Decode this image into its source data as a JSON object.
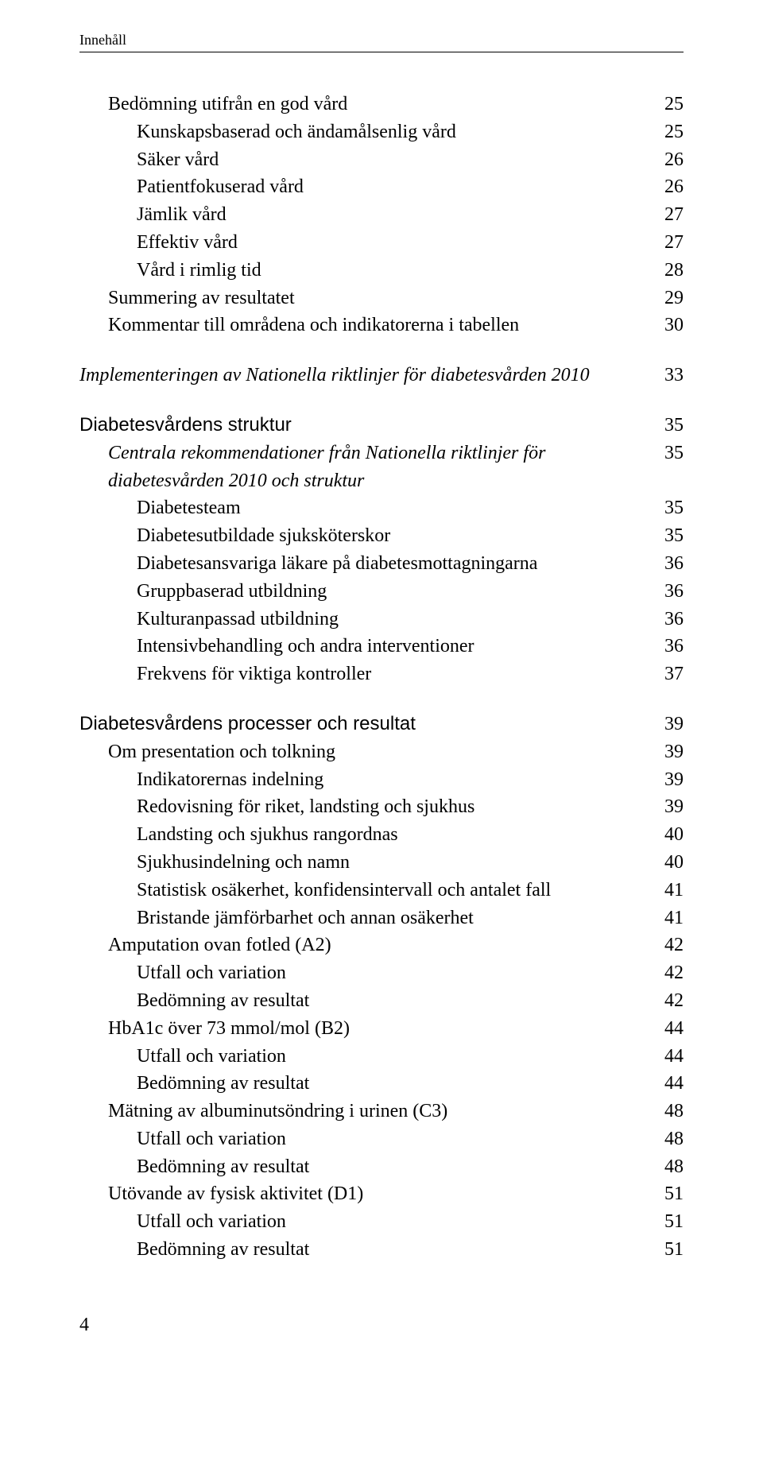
{
  "running_head": "Innehåll",
  "page_number": "4",
  "text_color": "#000000",
  "background_color": "#ffffff",
  "fontsize_body": 24,
  "fontsize_running_head": 18,
  "entries": [
    {
      "label": "Bedömning utifrån en god vård",
      "page": "25",
      "level": 1,
      "style": "normal",
      "gap": false
    },
    {
      "label": "Kunskapsbaserad och ändamålsenlig vård",
      "page": "25",
      "level": 2,
      "style": "normal",
      "gap": false
    },
    {
      "label": "Säker vård",
      "page": "26",
      "level": 2,
      "style": "normal",
      "gap": false
    },
    {
      "label": "Patientfokuserad vård",
      "page": "26",
      "level": 2,
      "style": "normal",
      "gap": false
    },
    {
      "label": "Jämlik vård",
      "page": "27",
      "level": 2,
      "style": "normal",
      "gap": false
    },
    {
      "label": "Effektiv vård",
      "page": "27",
      "level": 2,
      "style": "normal",
      "gap": false
    },
    {
      "label": "Vård i rimlig tid",
      "page": "28",
      "level": 2,
      "style": "normal",
      "gap": false
    },
    {
      "label": "Summering av resultatet",
      "page": "29",
      "level": 1,
      "style": "normal",
      "gap": false
    },
    {
      "label": "Kommentar till områdena och indikatorerna i tabellen",
      "page": "30",
      "level": 1,
      "style": "normal",
      "gap": false
    },
    {
      "label": "Implementeringen av Nationella riktlinjer för diabetesvården 2010",
      "page": "33",
      "level": 0,
      "style": "italic",
      "gap": true
    },
    {
      "label": "Diabetesvårdens struktur",
      "page": "35",
      "level": 0,
      "style": "sans",
      "gap": true
    },
    {
      "label": "Centrala rekommendationer från Nationella riktlinjer för diabetesvården 2010 och struktur",
      "page": "35",
      "level": 1,
      "style": "italic",
      "gap": false
    },
    {
      "label": "Diabetesteam",
      "page": "35",
      "level": 2,
      "style": "normal",
      "gap": false
    },
    {
      "label": "Diabetesutbildade sjuksköterskor",
      "page": "35",
      "level": 2,
      "style": "normal",
      "gap": false
    },
    {
      "label": "Diabetesansvariga läkare på diabetesmottagningarna",
      "page": "36",
      "level": 2,
      "style": "normal",
      "gap": false
    },
    {
      "label": "Gruppbaserad utbildning",
      "page": "36",
      "level": 2,
      "style": "normal",
      "gap": false
    },
    {
      "label": "Kulturanpassad utbildning",
      "page": "36",
      "level": 2,
      "style": "normal",
      "gap": false
    },
    {
      "label": "Intensivbehandling och andra interventioner",
      "page": "36",
      "level": 2,
      "style": "normal",
      "gap": false
    },
    {
      "label": "Frekvens för viktiga kontroller",
      "page": "37",
      "level": 2,
      "style": "normal",
      "gap": false
    },
    {
      "label": "Diabetesvårdens processer och resultat",
      "page": "39",
      "level": 0,
      "style": "sans",
      "gap": true
    },
    {
      "label": "Om presentation och tolkning",
      "page": "39",
      "level": 1,
      "style": "normal",
      "gap": false
    },
    {
      "label": "Indikatorernas indelning",
      "page": "39",
      "level": 2,
      "style": "normal",
      "gap": false
    },
    {
      "label": "Redovisning för riket, landsting och sjukhus",
      "page": "39",
      "level": 2,
      "style": "normal",
      "gap": false
    },
    {
      "label": "Landsting och sjukhus rangordnas",
      "page": "40",
      "level": 2,
      "style": "normal",
      "gap": false
    },
    {
      "label": "Sjukhusindelning och namn",
      "page": "40",
      "level": 2,
      "style": "normal",
      "gap": false
    },
    {
      "label": "Statistisk osäkerhet, konfidensintervall och antalet fall",
      "page": "41",
      "level": 2,
      "style": "normal",
      "gap": false
    },
    {
      "label": "Bristande jämförbarhet och annan osäkerhet",
      "page": "41",
      "level": 2,
      "style": "normal",
      "gap": false
    },
    {
      "label": "Amputation ovan fotled (A2)",
      "page": "42",
      "level": 1,
      "style": "normal",
      "gap": false
    },
    {
      "label": "Utfall och variation",
      "page": "42",
      "level": 2,
      "style": "normal",
      "gap": false
    },
    {
      "label": "Bedömning av resultat",
      "page": "42",
      "level": 2,
      "style": "normal",
      "gap": false
    },
    {
      "label": "HbA1c över 73 mmol/mol (B2)",
      "page": "44",
      "level": 1,
      "style": "normal",
      "gap": false
    },
    {
      "label": "Utfall och variation",
      "page": "44",
      "level": 2,
      "style": "normal",
      "gap": false
    },
    {
      "label": "Bedömning av resultat",
      "page": "44",
      "level": 2,
      "style": "normal",
      "gap": false
    },
    {
      "label": "Mätning av albuminutsöndring i urinen (C3)",
      "page": "48",
      "level": 1,
      "style": "normal",
      "gap": false
    },
    {
      "label": "Utfall och variation",
      "page": "48",
      "level": 2,
      "style": "normal",
      "gap": false
    },
    {
      "label": "Bedömning av resultat",
      "page": "48",
      "level": 2,
      "style": "normal",
      "gap": false
    },
    {
      "label": "Utövande av fysisk aktivitet (D1)",
      "page": "51",
      "level": 1,
      "style": "normal",
      "gap": false
    },
    {
      "label": "Utfall och variation",
      "page": "51",
      "level": 2,
      "style": "normal",
      "gap": false
    },
    {
      "label": "Bedömning av resultat",
      "page": "51",
      "level": 2,
      "style": "normal",
      "gap": false
    }
  ]
}
